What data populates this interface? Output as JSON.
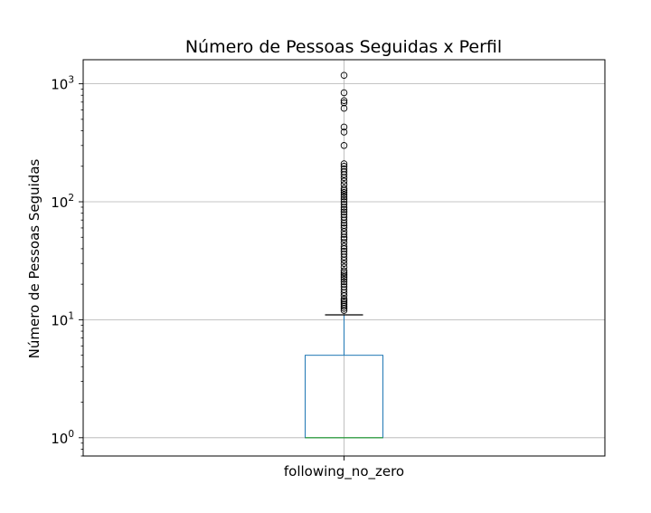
{
  "chart_data": {
    "type": "box",
    "title": "Número de Pessoas Seguidas x Perfil",
    "xlabel": "",
    "ylabel": "Número de Pessoas Seguidas",
    "categories": [
      "following_no_zero"
    ],
    "yscale": "log",
    "ylim": [
      0.7,
      1600
    ],
    "yticks": [
      {
        "value": 1,
        "base": "10",
        "exp": "0"
      },
      {
        "value": 10,
        "base": "10",
        "exp": "1"
      },
      {
        "value": 100,
        "base": "10",
        "exp": "2"
      },
      {
        "value": 1000,
        "base": "10",
        "exp": "3"
      }
    ],
    "grid": true,
    "box": {
      "whisker_low": 1,
      "q1": 1,
      "median": 1,
      "q3": 5,
      "whisker_high": 11
    },
    "outliers": [
      12,
      12.5,
      13,
      13.5,
      14,
      14.5,
      15,
      16,
      17,
      18,
      19,
      20,
      21,
      22,
      23,
      24,
      25,
      26,
      28,
      30,
      32,
      34,
      36,
      38,
      40,
      42,
      45,
      48,
      50,
      53,
      56,
      60,
      63,
      66,
      70,
      74,
      78,
      82,
      86,
      90,
      95,
      100,
      105,
      110,
      115,
      120,
      125,
      130,
      140,
      150,
      160,
      170,
      180,
      190,
      200,
      210,
      300,
      390,
      430,
      620,
      690,
      720,
      840,
      1180
    ],
    "colors": {
      "box": "#1f77b4",
      "median": "#2ca02c",
      "whisker": "#1f77b4",
      "cap": "#000000",
      "grid": "#b0b0b0",
      "outlier_edge": "#000000"
    }
  }
}
